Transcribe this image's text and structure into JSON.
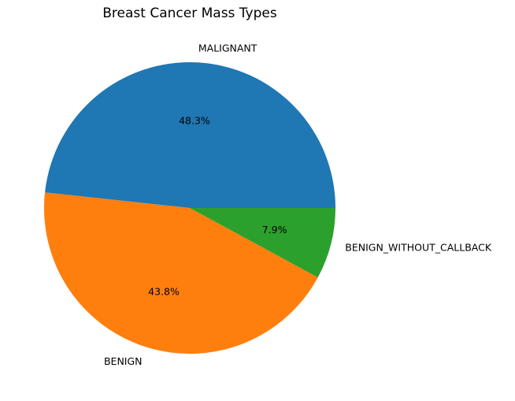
{
  "chart_data": {
    "type": "pie",
    "title": "Breast Cancer Mass Types",
    "categories": [
      "MALIGNANT",
      "BENIGN",
      "BENIGN_WITHOUT_CALLBACK"
    ],
    "values": [
      48.3,
      43.8,
      7.9
    ],
    "value_labels": [
      "48.3%",
      "43.8%",
      "7.9%"
    ],
    "colors": [
      "#1f77b4",
      "#ff7f0e",
      "#2ca02c"
    ],
    "start_angle_deg": 0,
    "direction": "counterclockwise",
    "legend": "none"
  }
}
